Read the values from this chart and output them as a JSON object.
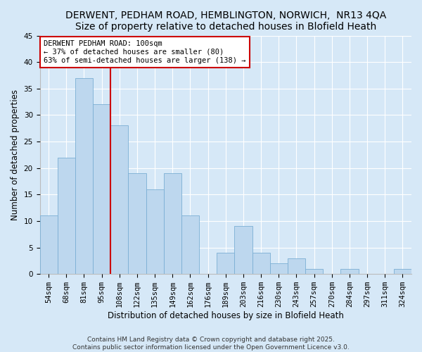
{
  "title": "DERWENT, PEDHAM ROAD, HEMBLINGTON, NORWICH,  NR13 4QA",
  "subtitle": "Size of property relative to detached houses in Blofield Heath",
  "xlabel": "Distribution of detached houses by size in Blofield Heath",
  "ylabel": "Number of detached properties",
  "bins": [
    "54sqm",
    "68sqm",
    "81sqm",
    "95sqm",
    "108sqm",
    "122sqm",
    "135sqm",
    "149sqm",
    "162sqm",
    "176sqm",
    "189sqm",
    "203sqm",
    "216sqm",
    "230sqm",
    "243sqm",
    "257sqm",
    "270sqm",
    "284sqm",
    "297sqm",
    "311sqm",
    "324sqm"
  ],
  "values": [
    11,
    22,
    37,
    32,
    28,
    19,
    16,
    19,
    11,
    0,
    4,
    9,
    4,
    2,
    3,
    1,
    0,
    1,
    0,
    0,
    1
  ],
  "bar_color": "#bdd7ee",
  "bar_edge_color": "#7bafd4",
  "bg_color": "#d6e8f7",
  "vline_x_index": 4,
  "vline_color": "#cc0000",
  "annotation_title": "DERWENT PEDHAM ROAD: 100sqm",
  "annotation_line1": "← 37% of detached houses are smaller (80)",
  "annotation_line2": "63% of semi-detached houses are larger (138) →",
  "annotation_box_color": "#ffffff",
  "annotation_border_color": "#cc0000",
  "ylim": [
    0,
    45
  ],
  "yticks": [
    0,
    5,
    10,
    15,
    20,
    25,
    30,
    35,
    40,
    45
  ],
  "footer1": "Contains HM Land Registry data © Crown copyright and database right 2025.",
  "footer2": "Contains public sector information licensed under the Open Government Licence v3.0.",
  "title_fontsize": 10,
  "subtitle_fontsize": 9,
  "axis_label_fontsize": 8.5,
  "tick_fontsize": 7.5,
  "footer_fontsize": 6.5
}
